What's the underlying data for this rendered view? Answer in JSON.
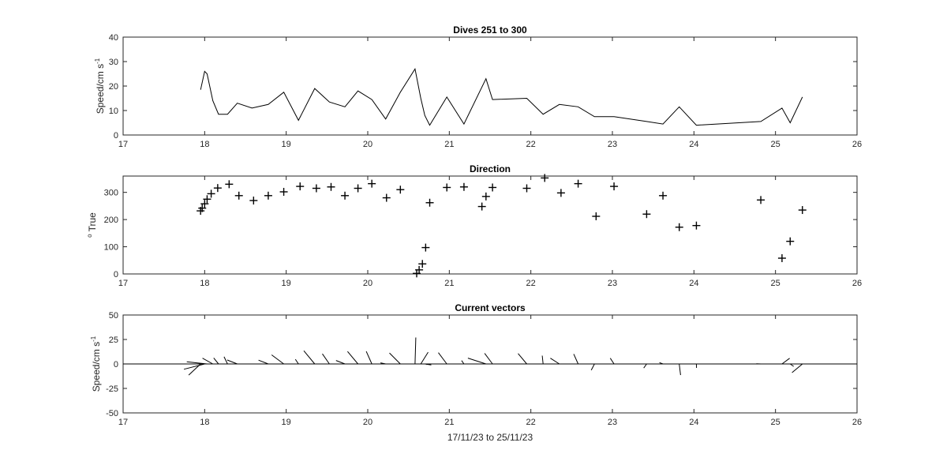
{
  "colors": {
    "line": "#000000",
    "axis": "#262626",
    "background": "#ffffff"
  },
  "chart_data": [
    {
      "type": "line",
      "title": "Dives 251 to 300",
      "ylabel": "Speed/cm s",
      "ylabel_superscript": "-1",
      "xlim": [
        17,
        26
      ],
      "ylim": [
        0,
        40
      ],
      "xticks": [
        "17",
        "18",
        "19",
        "20",
        "21",
        "22",
        "23",
        "24",
        "25",
        "26"
      ],
      "yticks": [
        "0",
        "10",
        "20",
        "30",
        "40"
      ],
      "x": [
        17.95,
        18.0,
        18.03,
        18.1,
        18.17,
        18.28,
        18.4,
        18.58,
        18.78,
        18.97,
        19.15,
        19.35,
        19.53,
        19.72,
        19.88,
        20.05,
        20.22,
        20.4,
        20.58,
        20.65,
        20.7,
        20.76,
        20.97,
        21.18,
        21.45,
        21.53,
        21.95,
        22.15,
        22.35,
        22.58,
        22.78,
        23.02,
        23.42,
        23.62,
        23.82,
        24.03,
        24.82,
        25.08,
        25.18,
        25.33
      ],
      "y": [
        18.5,
        26,
        25,
        14,
        8.5,
        8.5,
        13,
        11,
        12.5,
        17.5,
        6,
        19,
        13.5,
        11.5,
        18,
        14.5,
        6.5,
        17.5,
        27,
        15,
        8,
        4,
        15.5,
        4.5,
        23,
        14.5,
        15,
        8.5,
        12.5,
        11.5,
        7.5,
        7.5,
        5.5,
        4.5,
        11.5,
        4,
        5.5,
        11,
        5,
        15.5
      ]
    },
    {
      "type": "scatter",
      "title": "Direction",
      "ylabel": "True",
      "ylabel_prefix": "o",
      "xlim": [
        17,
        26
      ],
      "ylim": [
        0,
        360
      ],
      "xticks": [
        "17",
        "18",
        "19",
        "20",
        "21",
        "22",
        "23",
        "24",
        "25",
        "26"
      ],
      "yticks": [
        "0",
        "100",
        "200",
        "300"
      ],
      "marker": "+",
      "x": [
        17.95,
        17.97,
        18.0,
        18.03,
        18.08,
        18.16,
        18.3,
        18.42,
        18.6,
        18.78,
        18.97,
        19.17,
        19.37,
        19.55,
        19.72,
        19.88,
        20.05,
        20.23,
        20.4,
        20.6,
        20.63,
        20.67,
        20.71,
        20.76,
        20.97,
        21.18,
        21.4,
        21.45,
        21.53,
        21.95,
        22.17,
        22.37,
        22.58,
        22.8,
        23.02,
        23.42,
        23.62,
        23.82,
        24.03,
        24.82,
        25.08,
        25.18,
        25.33
      ],
      "y": [
        232,
        242,
        258,
        275,
        295,
        316,
        330,
        288,
        270,
        288,
        302,
        322,
        315,
        320,
        288,
        315,
        332,
        280,
        310,
        2,
        15,
        37,
        97,
        262,
        318,
        320,
        248,
        285,
        318,
        315,
        353,
        298,
        332,
        212,
        322,
        220,
        288,
        172,
        178,
        272,
        58,
        120,
        235
      ]
    },
    {
      "type": "vector",
      "title": "Current vectors",
      "ylabel": "Speed/cm s",
      "ylabel_superscript": "-1",
      "xlabel": "17/11/23 to 25/11/23",
      "xlim": [
        17,
        26
      ],
      "ylim": [
        -50,
        50
      ],
      "xticks": [
        "17",
        "18",
        "19",
        "20",
        "21",
        "22",
        "23",
        "24",
        "25",
        "26"
      ],
      "yticks": [
        "-50",
        "-25",
        "0",
        "25",
        "50"
      ],
      "vectors": [
        {
          "x": 17.95,
          "speed": 18.5,
          "dir": 232
        },
        {
          "x": 18.0,
          "speed": 26,
          "dir": 258
        },
        {
          "x": 18.03,
          "speed": 25,
          "dir": 275
        },
        {
          "x": 18.1,
          "speed": 14,
          "dir": 295
        },
        {
          "x": 18.17,
          "speed": 8.5,
          "dir": 316
        },
        {
          "x": 18.28,
          "speed": 8.5,
          "dir": 330
        },
        {
          "x": 18.4,
          "speed": 13,
          "dir": 288
        },
        {
          "x": 18.58,
          "speed": 11,
          "dir": 270
        },
        {
          "x": 18.78,
          "speed": 12.5,
          "dir": 288
        },
        {
          "x": 18.97,
          "speed": 17.5,
          "dir": 302
        },
        {
          "x": 19.15,
          "speed": 6,
          "dir": 322
        },
        {
          "x": 19.35,
          "speed": 19,
          "dir": 315
        },
        {
          "x": 19.53,
          "speed": 13.5,
          "dir": 320
        },
        {
          "x": 19.72,
          "speed": 11.5,
          "dir": 288
        },
        {
          "x": 19.88,
          "speed": 18,
          "dir": 315
        },
        {
          "x": 20.05,
          "speed": 14.5,
          "dir": 332
        },
        {
          "x": 20.22,
          "speed": 6.5,
          "dir": 280
        },
        {
          "x": 20.4,
          "speed": 17.5,
          "dir": 310
        },
        {
          "x": 20.58,
          "speed": 27,
          "dir": 2
        },
        {
          "x": 20.65,
          "speed": 15,
          "dir": 37
        },
        {
          "x": 20.7,
          "speed": 8,
          "dir": 97
        },
        {
          "x": 20.76,
          "speed": 4,
          "dir": 262
        },
        {
          "x": 20.97,
          "speed": 15.5,
          "dir": 318
        },
        {
          "x": 21.18,
          "speed": 4.5,
          "dir": 320
        },
        {
          "x": 21.45,
          "speed": 23,
          "dir": 285
        },
        {
          "x": 21.53,
          "speed": 14.5,
          "dir": 318
        },
        {
          "x": 21.95,
          "speed": 15,
          "dir": 315
        },
        {
          "x": 22.15,
          "speed": 8.5,
          "dir": 353
        },
        {
          "x": 22.35,
          "speed": 12.5,
          "dir": 298
        },
        {
          "x": 22.58,
          "speed": 11.5,
          "dir": 332
        },
        {
          "x": 22.78,
          "speed": 7.5,
          "dir": 212
        },
        {
          "x": 23.02,
          "speed": 7.5,
          "dir": 322
        },
        {
          "x": 23.42,
          "speed": 5.5,
          "dir": 220
        },
        {
          "x": 23.62,
          "speed": 4.5,
          "dir": 288
        },
        {
          "x": 23.82,
          "speed": 11.5,
          "dir": 172
        },
        {
          "x": 24.03,
          "speed": 4,
          "dir": 178
        },
        {
          "x": 24.82,
          "speed": 5.5,
          "dir": 272
        },
        {
          "x": 25.08,
          "speed": 11,
          "dir": 58
        },
        {
          "x": 25.18,
          "speed": 5,
          "dir": 120
        },
        {
          "x": 25.33,
          "speed": 15.5,
          "dir": 235
        }
      ]
    }
  ]
}
